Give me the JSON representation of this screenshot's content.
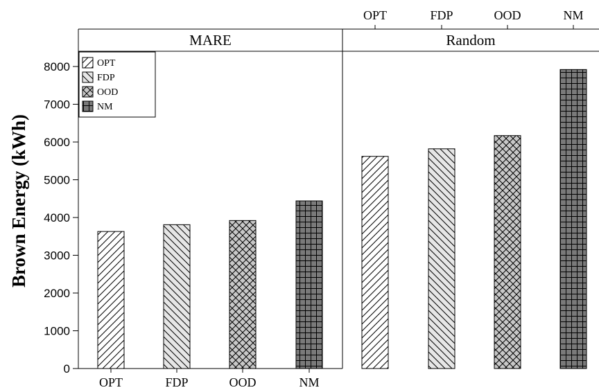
{
  "chart_data": {
    "type": "bar",
    "ylabel": "Brown Energy (kWh)",
    "ylim": [
      0,
      8500
    ],
    "yticks": [
      0,
      1000,
      2000,
      3000,
      4000,
      5000,
      6000,
      7000,
      8000
    ],
    "categories": [
      "OPT",
      "FDP",
      "OOD",
      "NM"
    ],
    "legend": {
      "placement": "top-left",
      "entries": [
        "OPT",
        "FDP",
        "OOD",
        "NM"
      ]
    },
    "panels": [
      {
        "title": "MARE",
        "values": [
          3630,
          3810,
          3920,
          4440
        ]
      },
      {
        "title": "Random",
        "values": [
          5620,
          5820,
          6170,
          7920
        ]
      }
    ]
  },
  "colors": {
    "OPT": "#ffffff",
    "FDP": "#e6e6e6",
    "OOD": "#c8c8c8",
    "NM": "#7a7a7a"
  }
}
